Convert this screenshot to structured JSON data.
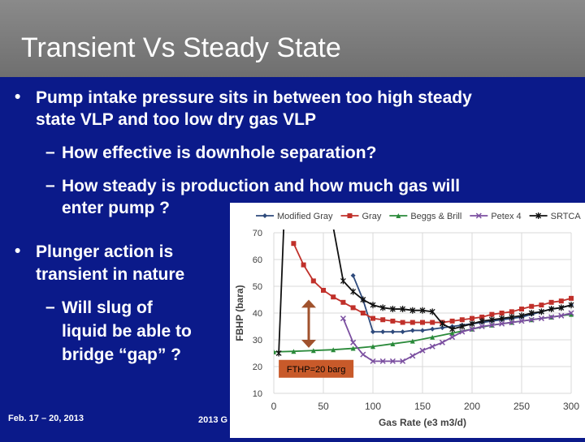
{
  "slide": {
    "title": "Transient Vs Steady State",
    "bullets": [
      {
        "text1": "Pump intake pressure sits in between too high steady",
        "text2": "state VLP and too low dry gas VLP"
      },
      {
        "text1": "Plunger action is",
        "text2": "transient in nature"
      }
    ],
    "sub_bullets": [
      {
        "text1": "How effective is downhole separation?"
      },
      {
        "text1": "How steady is production and how much gas will",
        "text2": "enter pump ?"
      },
      {
        "text1": "Will slug of",
        "text2": "liquid be able to",
        "text3": "bridge “gap” ?"
      }
    ],
    "footer_left": "Feb. 17 – 20, 2013",
    "footer_mid": "2013 G",
    "bullet_glyph": "•",
    "dash_glyph": "–"
  },
  "chart_data": {
    "type": "line",
    "xlabel": "Gas Rate (e3 m3/d)",
    "ylabel": "FBHP (bara)",
    "xlim": [
      0,
      300
    ],
    "ylim": [
      10,
      70
    ],
    "xticks": [
      0,
      50,
      100,
      150,
      200,
      250,
      300
    ],
    "yticks": [
      10,
      20,
      30,
      40,
      50,
      60,
      70
    ],
    "legend_position": "top",
    "annotation": "FTHP=20 barg",
    "series": [
      {
        "name": "Modified Gray",
        "color": "#2e4a7c",
        "marker": "diamond",
        "x": [
          80,
          90,
          100,
          110,
          120,
          130,
          140,
          150,
          160,
          170,
          180,
          190,
          200,
          210,
          220,
          230,
          240,
          250,
          260,
          270,
          280,
          290,
          300
        ],
        "y": [
          54,
          45,
          33,
          33,
          33,
          33,
          33.5,
          33.5,
          34,
          34.5,
          35,
          35.5,
          36,
          36.5,
          37,
          37.5,
          38,
          38.5,
          39.5,
          40.5,
          41.5,
          42,
          43
        ]
      },
      {
        "name": "Gray",
        "color": "#c0302a",
        "marker": "square",
        "x": [
          20,
          30,
          40,
          50,
          60,
          70,
          80,
          90,
          100,
          110,
          120,
          130,
          140,
          150,
          160,
          170,
          180,
          190,
          200,
          210,
          220,
          230,
          240,
          250,
          260,
          270,
          280,
          290,
          300
        ],
        "y": [
          66,
          58,
          52,
          48.5,
          46,
          44,
          42,
          40,
          38,
          37.5,
          37,
          36.5,
          36.5,
          36.5,
          36.5,
          36.5,
          37,
          37.5,
          38,
          38.5,
          39.5,
          40,
          40.5,
          41.5,
          42.5,
          43,
          44,
          44.5,
          45.5
        ]
      },
      {
        "name": "Beggs & Brill",
        "color": "#2a8a3a",
        "marker": "triangle",
        "x": [
          0,
          20,
          40,
          60,
          80,
          100,
          120,
          140,
          160,
          180,
          200,
          220,
          240,
          260,
          280,
          300
        ],
        "y": [
          25.5,
          25.7,
          26,
          26.3,
          26.8,
          27.5,
          28.5,
          29.5,
          31,
          32.5,
          34,
          35.5,
          36.5,
          37.5,
          38.5,
          39.5
        ]
      },
      {
        "name": "Petex 4",
        "color": "#7b4fa0",
        "marker": "x",
        "x": [
          70,
          80,
          90,
          100,
          110,
          120,
          130,
          140,
          150,
          160,
          170,
          180,
          190,
          200,
          210,
          220,
          230,
          240,
          250,
          260,
          270,
          280,
          290,
          300
        ],
        "y": [
          38,
          29,
          24.5,
          22,
          22,
          22,
          22,
          24,
          26,
          27.5,
          29,
          31,
          33,
          34,
          35,
          35.5,
          36,
          36.5,
          37,
          37.5,
          38,
          38.5,
          39,
          40
        ]
      },
      {
        "name": "SRTCA",
        "color": "#111111",
        "marker": "star",
        "x": [
          5,
          10,
          60,
          70,
          80,
          90,
          100,
          110,
          120,
          130,
          140,
          150,
          160,
          170,
          180,
          190,
          200,
          210,
          220,
          230,
          240,
          250,
          260,
          270,
          280,
          290,
          300
        ],
        "y": [
          25,
          72,
          72,
          52,
          48,
          45,
          43,
          42,
          41.5,
          41.5,
          41,
          41,
          40.5,
          36,
          34,
          35,
          36,
          37,
          37.5,
          38,
          38.5,
          39,
          40,
          40.5,
          41.5,
          42,
          43
        ]
      }
    ]
  }
}
